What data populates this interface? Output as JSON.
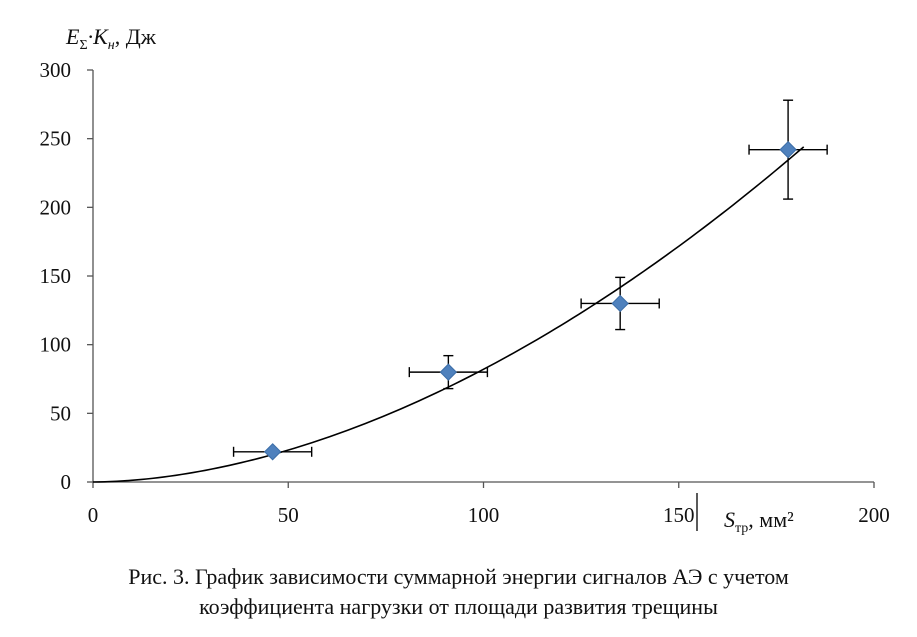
{
  "chart_data": {
    "type": "scatter",
    "xlim": [
      0,
      200
    ],
    "ylim": [
      0,
      300
    ],
    "x_ticks": [
      0,
      50,
      100,
      150,
      200
    ],
    "y_ticks": [
      0,
      50,
      100,
      150,
      200,
      250,
      300
    ],
    "ylabel": {
      "main": "E",
      "sub1": "Σ",
      "mid": "·K",
      "sub2": "н",
      "unit": ", Дж"
    },
    "xlabel": {
      "main": "S",
      "sub": "тр",
      "unit": ", мм²"
    },
    "marker_color": "#4f81bd",
    "points": [
      {
        "x": 46,
        "y": 22,
        "xerr": 10,
        "yerr_low": 22,
        "yerr_high": 22
      },
      {
        "x": 91,
        "y": 80,
        "xerr": 10,
        "yerr_low": 68,
        "yerr_high": 92
      },
      {
        "x": 135,
        "y": 130,
        "xerr": 10,
        "yerr_low": 111,
        "yerr_high": 149
      },
      {
        "x": 178,
        "y": 242,
        "xerr": 10,
        "yerr_low": 206,
        "yerr_high": 278
      }
    ],
    "trendline": {
      "type": "power",
      "coef": 0.0188,
      "exponent": 1.82,
      "x_range": [
        0,
        182
      ]
    }
  },
  "caption": {
    "line1": "Рис. 3. График зависимости суммарной энергии сигналов АЭ с учетом",
    "line2": "коэффициента нагрузки от площади развития трещины"
  }
}
